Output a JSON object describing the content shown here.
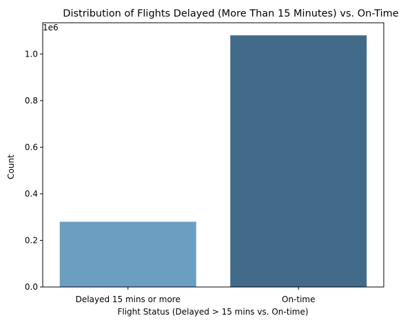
{
  "chart_data": {
    "type": "bar",
    "title": "Distribution of Flights Delayed (More Than 15 Minutes) vs. On-Time",
    "xlabel": "Flight Status (Delayed > 15 mins vs. On-time)",
    "ylabel": "Count",
    "y_offset_label": "1e6",
    "categories": [
      "Delayed 15 mins or more",
      "On-time"
    ],
    "values": [
      280000,
      1080000
    ],
    "ylim": [
      0,
      1134000
    ],
    "yticks": [
      0,
      200000,
      400000,
      600000,
      800000,
      1000000
    ],
    "ytick_labels": [
      "0.0",
      "0.2",
      "0.4",
      "0.6",
      "0.8",
      "1.0"
    ],
    "bar_colors": [
      "#6c9ec2",
      "#426a89"
    ],
    "grid": false,
    "legend": "none"
  }
}
